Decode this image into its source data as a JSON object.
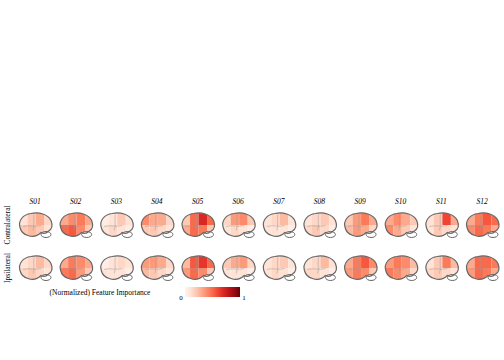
{
  "chart_data": {
    "type": "heatmap",
    "columns": [
      "S01",
      "S02",
      "S03",
      "S04",
      "S05",
      "S06",
      "S07",
      "S08",
      "S09",
      "S10",
      "S11",
      "S12"
    ],
    "rows": [
      "Contralateral",
      "Ipsilateral"
    ],
    "cells": [
      [
        [
          0.1,
          0.2,
          0.3,
          0.15,
          0.2,
          0.25,
          0.2,
          0.1
        ],
        [
          0.3,
          0.4,
          0.45,
          0.3,
          0.5,
          0.55,
          0.4,
          0.2
        ],
        [
          0.05,
          0.1,
          0.2,
          0.1,
          0.1,
          0.15,
          0.1,
          0.05
        ],
        [
          0.4,
          0.3,
          0.3,
          0.15,
          0.2,
          0.2,
          0.15,
          0.1
        ],
        [
          0.2,
          0.5,
          0.7,
          0.5,
          0.3,
          0.5,
          0.45,
          0.2
        ],
        [
          0.15,
          0.35,
          0.4,
          0.2,
          0.1,
          0.15,
          0.1,
          0.05
        ],
        [
          0.1,
          0.15,
          0.25,
          0.1,
          0.1,
          0.1,
          0.1,
          0.05
        ],
        [
          0.1,
          0.15,
          0.2,
          0.1,
          0.15,
          0.2,
          0.15,
          0.05
        ],
        [
          0.2,
          0.35,
          0.45,
          0.3,
          0.25,
          0.35,
          0.3,
          0.15
        ],
        [
          0.3,
          0.4,
          0.3,
          0.2,
          0.4,
          0.3,
          0.2,
          0.1
        ],
        [
          0.1,
          0.2,
          0.6,
          0.3,
          0.1,
          0.2,
          0.15,
          0.1
        ],
        [
          0.3,
          0.45,
          0.55,
          0.5,
          0.4,
          0.5,
          0.45,
          0.3
        ]
      ],
      [
        [
          0.1,
          0.15,
          0.25,
          0.15,
          0.15,
          0.2,
          0.15,
          0.1
        ],
        [
          0.3,
          0.45,
          0.4,
          0.3,
          0.45,
          0.5,
          0.35,
          0.2
        ],
        [
          0.05,
          0.1,
          0.15,
          0.1,
          0.1,
          0.1,
          0.1,
          0.05
        ],
        [
          0.35,
          0.35,
          0.3,
          0.15,
          0.25,
          0.2,
          0.15,
          0.1
        ],
        [
          0.25,
          0.55,
          0.65,
          0.5,
          0.35,
          0.5,
          0.4,
          0.2
        ],
        [
          0.2,
          0.3,
          0.35,
          0.15,
          0.1,
          0.1,
          0.1,
          0.05
        ],
        [
          0.1,
          0.15,
          0.2,
          0.1,
          0.1,
          0.15,
          0.1,
          0.05
        ],
        [
          0.1,
          0.15,
          0.25,
          0.1,
          0.15,
          0.15,
          0.1,
          0.05
        ],
        [
          0.3,
          0.45,
          0.55,
          0.4,
          0.35,
          0.45,
          0.4,
          0.2
        ],
        [
          0.35,
          0.45,
          0.4,
          0.25,
          0.45,
          0.4,
          0.3,
          0.15
        ],
        [
          0.1,
          0.2,
          0.45,
          0.25,
          0.15,
          0.2,
          0.15,
          0.1
        ],
        [
          0.3,
          0.5,
          0.5,
          0.45,
          0.35,
          0.5,
          0.45,
          0.3
        ]
      ]
    ],
    "colorbar": {
      "label": "(Normalized) Feature Importance",
      "range": [
        0,
        1
      ],
      "ticks": [
        0,
        1
      ]
    }
  }
}
